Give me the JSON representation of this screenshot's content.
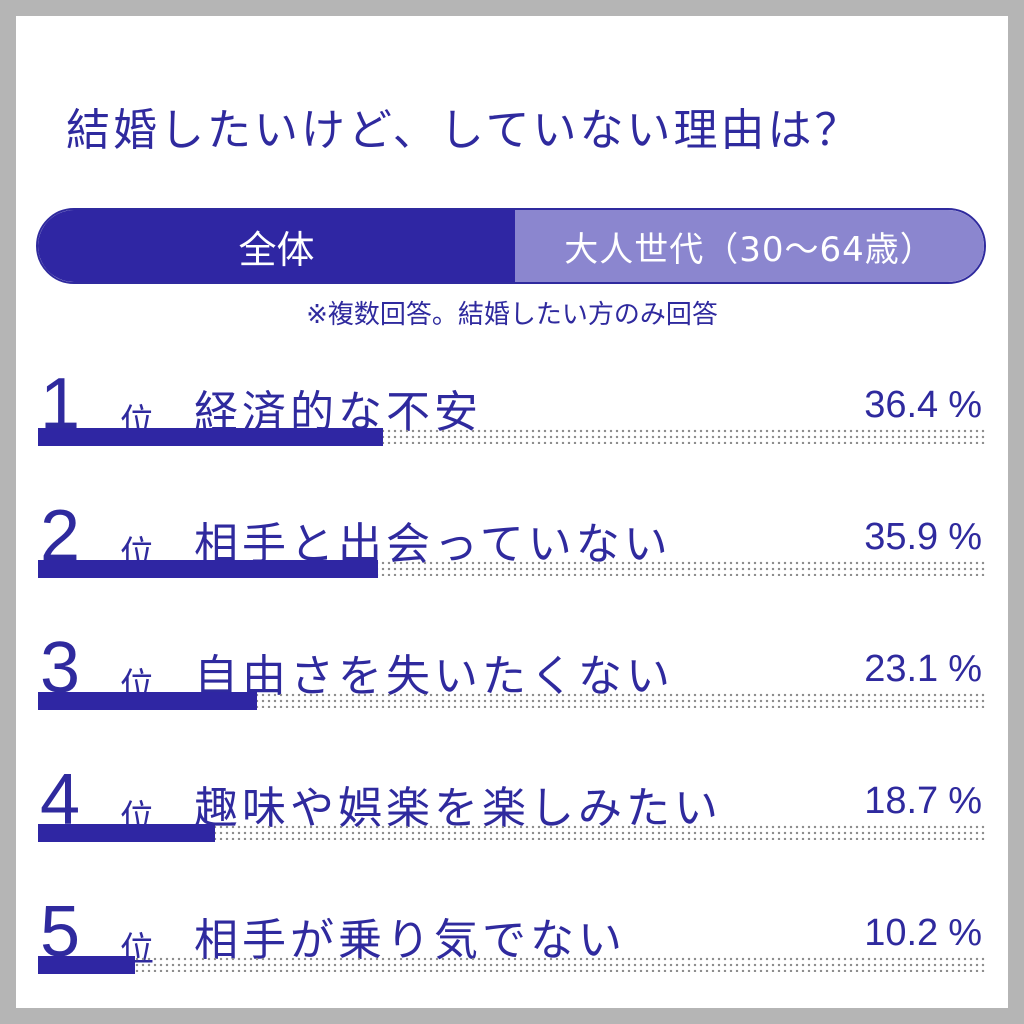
{
  "title": "結婚したいけど、していない理由は？",
  "tabs": {
    "active": "全体",
    "inactive": "大人世代（30〜64歳）"
  },
  "note": "※複数回答。結婚したい方のみ回答",
  "rank_suffix": "位",
  "percent_unit": "%",
  "colors": {
    "primary": "#2f26a3",
    "inactive_tab": "#8b86cf",
    "dots": "#8a8a8a"
  },
  "chart_data": {
    "type": "bar",
    "orientation": "horizontal",
    "categories": [
      "経済的な不安",
      "相手と出会っていない",
      "自由さを失いたくない",
      "趣味や娯楽を楽しみたい",
      "相手が乗り気でない"
    ],
    "values": [
      36.4,
      35.9,
      23.1,
      18.7,
      10.2
    ],
    "ranks": [
      "1",
      "2",
      "3",
      "4",
      "5"
    ],
    "value_labels": [
      "36.4",
      "35.9",
      "23.1",
      "18.7",
      "10.2"
    ],
    "xlim": [
      0,
      100
    ]
  }
}
